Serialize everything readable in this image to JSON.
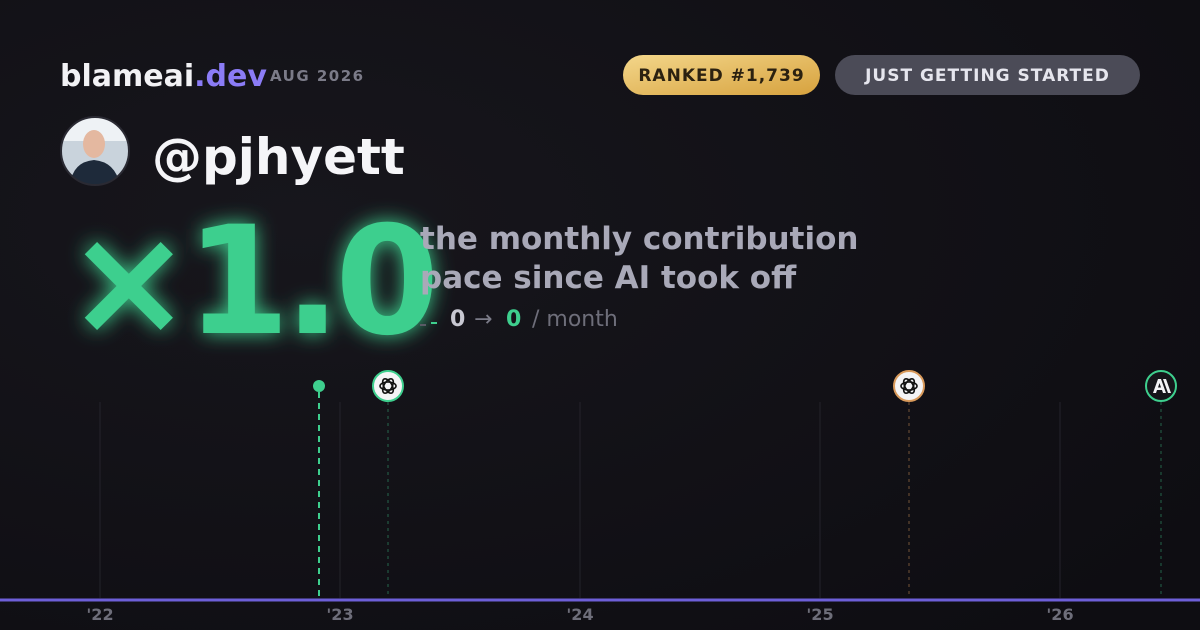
{
  "brand": {
    "name": "blameai",
    "tld": ".dev",
    "date": "AUG 2026"
  },
  "badges": {
    "rank": "RANKED #1,739",
    "status": "JUST GETTING STARTED"
  },
  "profile": {
    "username": "@pjhyett"
  },
  "headline": {
    "multiplier": "×1.0",
    "line1": "the monthly contribution",
    "line2": "pace since AI took off"
  },
  "pace": {
    "before": "0",
    "arrow": "→",
    "after": "0",
    "unit": "/ month"
  },
  "timeline": {
    "years": [
      "'22",
      "'23",
      "'24",
      "'25",
      "'26"
    ]
  }
}
